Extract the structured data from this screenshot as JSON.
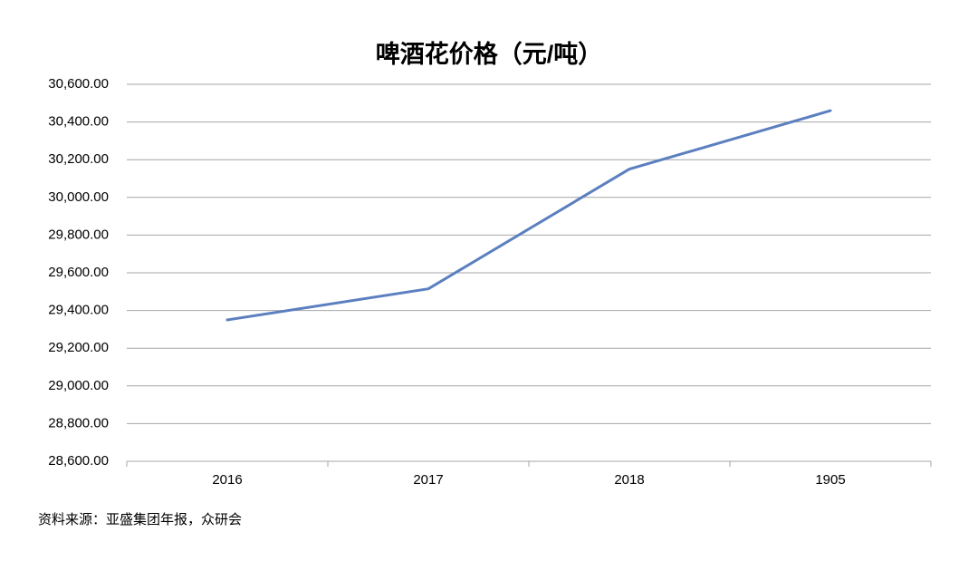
{
  "chart_data": {
    "type": "line",
    "title": "啤酒花价格（元/吨）",
    "categories": [
      "2016",
      "2017",
      "2018",
      "1905"
    ],
    "series": [
      {
        "name": "啤酒花价格",
        "color": "#5b7fbf",
        "values": [
          29350,
          29515,
          30150,
          30460
        ]
      }
    ],
    "ylim": [
      28600,
      30600
    ],
    "yticks": [
      {
        "value": 28600,
        "label": "28,600.00"
      },
      {
        "value": 28800,
        "label": "28,800.00"
      },
      {
        "value": 29000,
        "label": "29,000.00"
      },
      {
        "value": 29200,
        "label": "29,200.00"
      },
      {
        "value": 29400,
        "label": "29,400.00"
      },
      {
        "value": 29600,
        "label": "29,600.00"
      },
      {
        "value": 29800,
        "label": "29,800.00"
      },
      {
        "value": 30000,
        "label": "30,000.00"
      },
      {
        "value": 30200,
        "label": "30,200.00"
      },
      {
        "value": 30400,
        "label": "30,400.00"
      },
      {
        "value": 30600,
        "label": "30,600.00"
      }
    ],
    "grid": true,
    "source": "资料来源：亚盛集团年报，众研会"
  }
}
